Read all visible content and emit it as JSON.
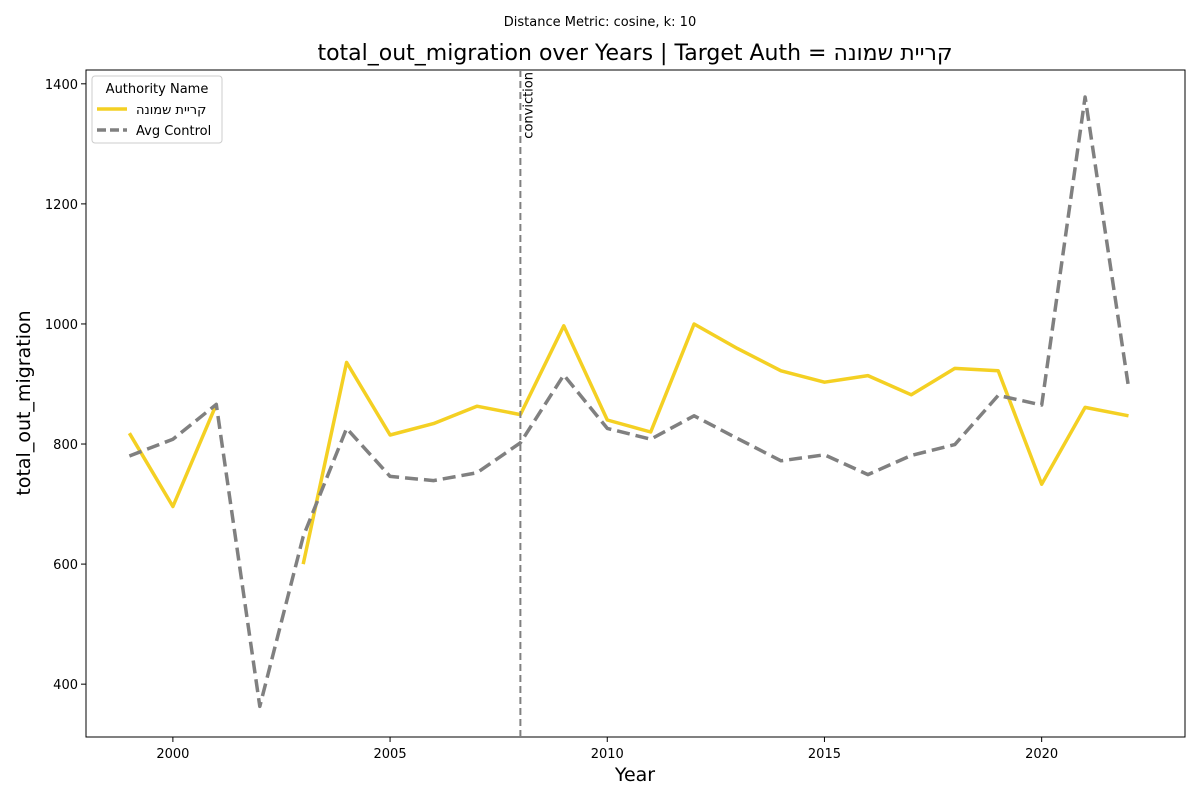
{
  "chart_data": {
    "type": "line",
    "suptitle": "Distance Metric: cosine, k: 10",
    "title": "total_out_migration over Years | Target Auth = קריית שמונה",
    "xlabel": "Year",
    "ylabel": "total_out_migration",
    "xlim": [
      1998.0,
      2023.3
    ],
    "ylim": [
      312,
      1423
    ],
    "xticks": [
      2000,
      2005,
      2010,
      2015,
      2020
    ],
    "yticks": [
      400,
      600,
      800,
      1000,
      1200,
      1400
    ],
    "legend": {
      "title": "Authority Name",
      "placement": "upper-left"
    },
    "annotation": {
      "label": "conviction",
      "x": 2008,
      "style": "dashed",
      "color": "#808080"
    },
    "series": [
      {
        "name": "קריית שמונה",
        "color": "#f4d023",
        "style": "solid",
        "x": [
          1999,
          2000,
          2001,
          2002,
          2003,
          2004,
          2005,
          2006,
          2007,
          2008,
          2009,
          2010,
          2011,
          2012,
          2013,
          2014,
          2015,
          2016,
          2017,
          2018,
          2019,
          2020,
          2021,
          2022
        ],
        "y": [
          818,
          696,
          866,
          null,
          600,
          936,
          815,
          834,
          863,
          849,
          997,
          840,
          820,
          1000,
          959,
          922,
          903,
          914,
          882,
          926,
          922,
          733,
          861,
          847
        ]
      },
      {
        "name": "Avg Control",
        "color": "#808080",
        "style": "dashed",
        "x": [
          1999,
          2000,
          2001,
          2002,
          2003,
          2004,
          2005,
          2006,
          2007,
          2008,
          2009,
          2010,
          2011,
          2012,
          2013,
          2014,
          2015,
          2016,
          2017,
          2018,
          2019,
          2020,
          2021,
          2022
        ],
        "y": [
          780,
          808,
          866,
          363,
          646,
          826,
          746,
          739,
          752,
          802,
          915,
          826,
          808,
          847,
          809,
          772,
          782,
          749,
          781,
          799,
          881,
          865,
          1378,
          895
        ]
      }
    ]
  }
}
